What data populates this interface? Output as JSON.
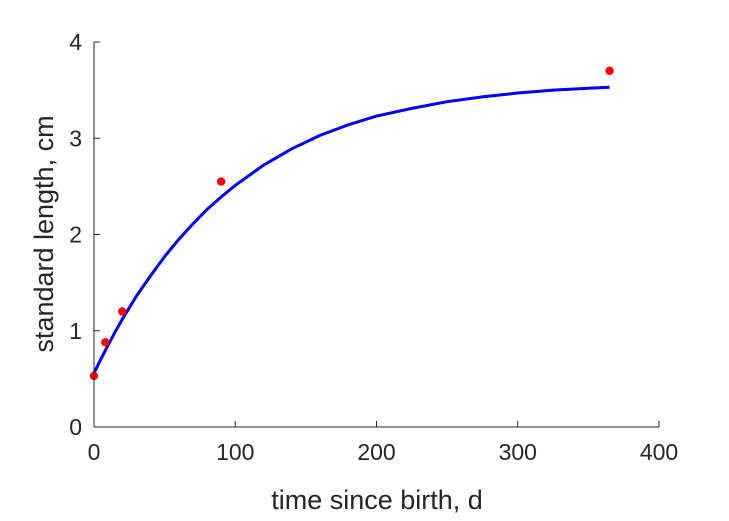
{
  "chart_data": {
    "type": "line",
    "title": "",
    "xlabel": "time since birth, d",
    "ylabel": "standard length, cm",
    "xlim": [
      0,
      400
    ],
    "ylim": [
      0,
      4
    ],
    "xticks": [
      0,
      100,
      200,
      300,
      400
    ],
    "yticks": [
      0,
      1,
      2,
      3,
      4
    ],
    "grid": false,
    "series": [
      {
        "type": "line",
        "color": "#0000ff",
        "x": [
          0,
          5,
          10,
          15,
          20,
          30,
          40,
          50,
          60,
          70,
          80,
          90,
          100,
          120,
          140,
          160,
          180,
          200,
          225,
          250,
          275,
          300,
          325,
          350,
          365
        ],
        "y": [
          0.56,
          0.71,
          0.85,
          0.99,
          1.12,
          1.36,
          1.57,
          1.77,
          1.95,
          2.11,
          2.26,
          2.39,
          2.51,
          2.72,
          2.89,
          3.03,
          3.14,
          3.23,
          3.31,
          3.38,
          3.43,
          3.47,
          3.5,
          3.52,
          3.53
        ]
      },
      {
        "type": "scatter",
        "color": "#ff0000",
        "x": [
          0,
          8,
          20,
          90,
          365
        ],
        "y": [
          0.53,
          0.88,
          1.2,
          2.55,
          3.7
        ]
      }
    ]
  }
}
